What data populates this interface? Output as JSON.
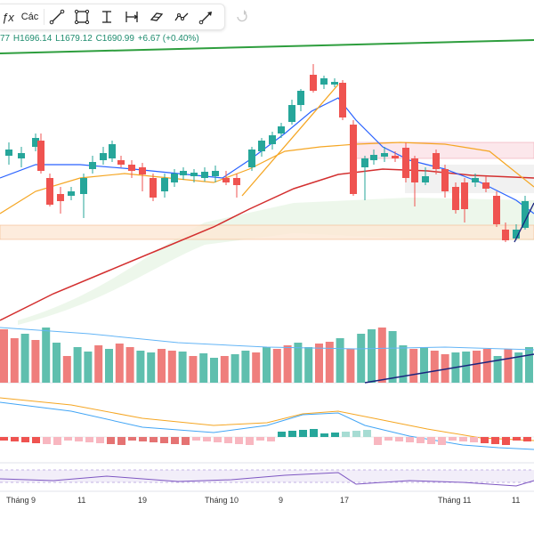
{
  "toolbar": {
    "fx_symbol": "ƒx",
    "fx_label": "Các",
    "tools": [
      {
        "icon": "trend-line-icon"
      },
      {
        "icon": "rectangle-icon"
      },
      {
        "icon": "vertical-range-icon"
      },
      {
        "icon": "date-range-icon"
      },
      {
        "icon": "brush-icon"
      },
      {
        "icon": "path-icon"
      },
      {
        "icon": "arrow-marker-icon"
      },
      {
        "icon": "undo-icon"
      }
    ]
  },
  "ohlc": {
    "open_partial": "77",
    "high": "H1696.14",
    "low": "L1679.12",
    "close": "C1690.99",
    "change": "+6.67 (+0.40%)"
  },
  "x_axis": {
    "labels": [
      "Tháng 9",
      "11",
      "19",
      "Tháng 10",
      "9",
      "17",
      "Tháng 11",
      "11"
    ]
  },
  "colors": {
    "up": "#26a69a",
    "down": "#ef5350",
    "ma_blue": "#2962ff",
    "ma_orange": "#f5a623",
    "ma_red": "#d32f2f",
    "trend_green": "#2e9e3e"
  }
}
